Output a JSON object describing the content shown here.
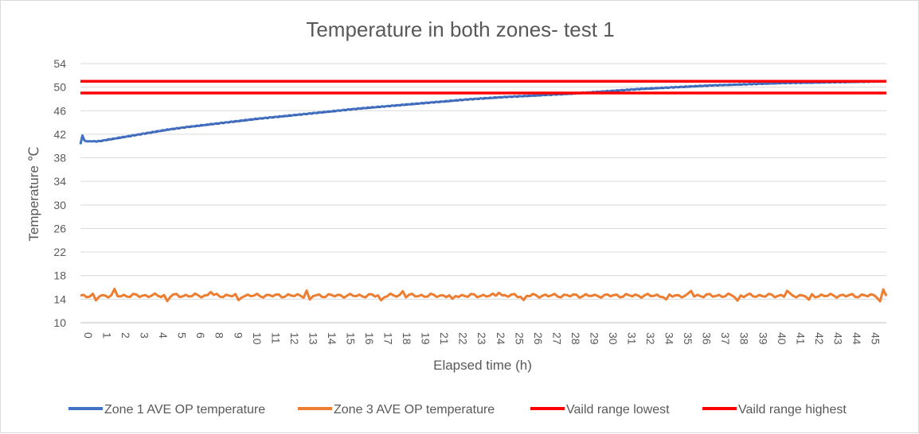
{
  "chart_data": {
    "type": "line",
    "title": "Temperature in both zones- test 1",
    "xlabel": "Elapsed time (h)",
    "ylabel": "Temperature ℃",
    "xlim": [
      0,
      46
    ],
    "ylim": [
      10,
      54
    ],
    "y_ticks": [
      10,
      14,
      18,
      22,
      26,
      30,
      34,
      38,
      42,
      46,
      50,
      54
    ],
    "x_tick_labels": [
      "0",
      "1",
      "2",
      "3",
      "4",
      "5",
      "6",
      "8",
      "9",
      "10",
      "11",
      "12",
      "13",
      "14",
      "15",
      "16",
      "17",
      "18",
      "19",
      "21",
      "22",
      "23",
      "24",
      "25",
      "26",
      "27",
      "28",
      "29",
      "30",
      "31",
      "32",
      "34",
      "35",
      "36",
      "37",
      "38",
      "39",
      "40",
      "41",
      "42",
      "43",
      "44",
      "45"
    ],
    "grid": "horizontal",
    "legend_position": "bottom",
    "colors": {
      "zone1": "#4472c4",
      "zone3": "#ed7d31",
      "range": "#ff0000",
      "grid": "#d9d9d9",
      "axis": "#bfbfbf"
    },
    "series": [
      {
        "name": "Zone 1 AVE OP temperature",
        "color": "#4472c4",
        "x": [
          0,
          0.1,
          0.25,
          0.5,
          1,
          2,
          3,
          4,
          5,
          6,
          8,
          10,
          12,
          14,
          16,
          18,
          20,
          22,
          24,
          26,
          28,
          30,
          32,
          34,
          36,
          38,
          40,
          42,
          44,
          45.9
        ],
        "y": [
          40.3,
          41.9,
          40.8,
          40.8,
          40.8,
          41.3,
          41.8,
          42.3,
          42.8,
          43.2,
          43.9,
          44.6,
          45.2,
          45.8,
          46.4,
          46.9,
          47.4,
          47.9,
          48.3,
          48.6,
          48.9,
          49.3,
          49.7,
          50.0,
          50.3,
          50.5,
          50.7,
          50.8,
          50.9,
          51.0
        ]
      },
      {
        "name": "Zone 3 AVE OP temperature",
        "color": "#ed7d31",
        "x": [
          0,
          46
        ],
        "y": [
          14.6,
          14.6
        ]
      },
      {
        "name": "Vaild range lowest",
        "color": "#ff0000",
        "x": [
          0,
          46
        ],
        "y": [
          49,
          49
        ]
      },
      {
        "name": "Vaild range highest",
        "color": "#ff0000",
        "x": [
          0,
          46
        ],
        "y": [
          51,
          51
        ]
      }
    ]
  }
}
